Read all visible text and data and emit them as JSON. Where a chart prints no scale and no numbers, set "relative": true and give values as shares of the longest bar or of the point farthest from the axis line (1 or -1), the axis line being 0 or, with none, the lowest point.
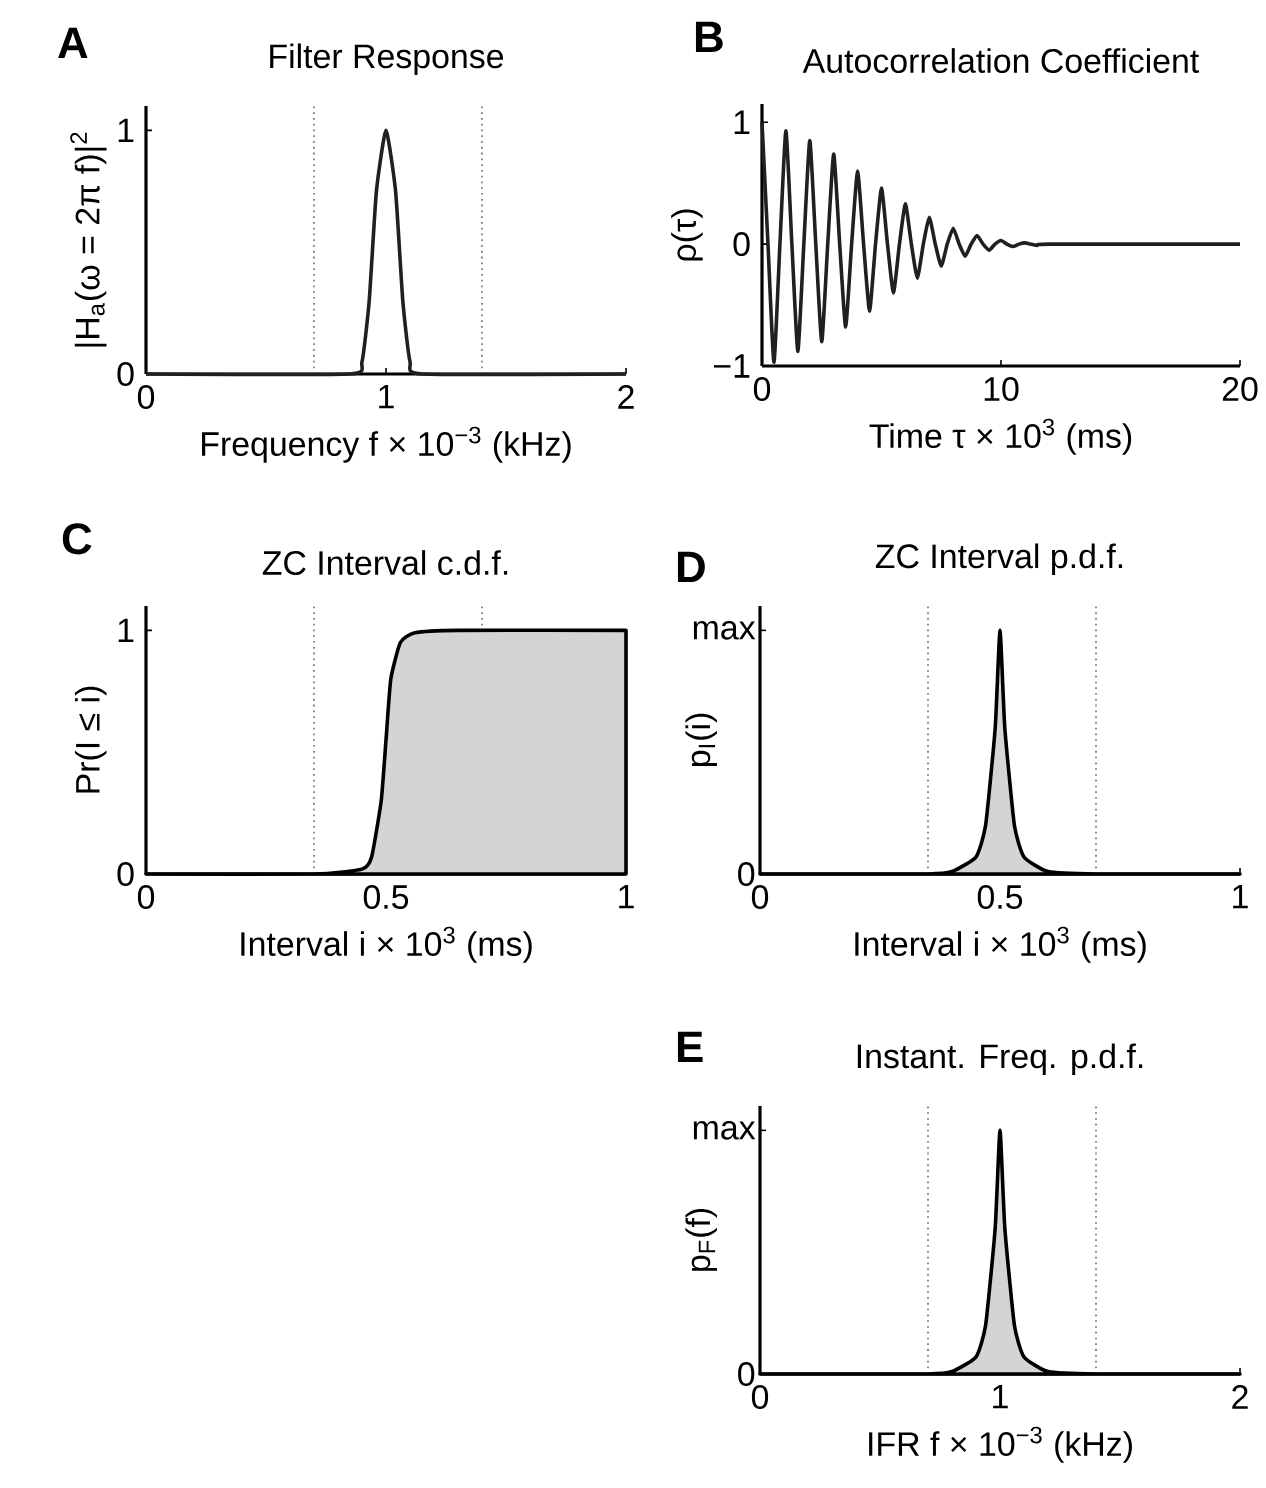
{
  "chart_data": [
    {
      "type": "line",
      "title": "Filter Response",
      "xlabel": "Frequency f × 10$^{−3}$ (kHz)",
      "ylabel": "|H$_{a}$(ω = 2π f)|$^{2}$",
      "annotations": [
        "A"
      ],
      "x": [
        0,
        0.85,
        0.9,
        0.93,
        0.96,
        1.0,
        1.04,
        1.07,
        1.1,
        1.15,
        2
      ],
      "series": [
        {
          "color": "#231f20",
          "values": [
            0,
            0,
            0.05,
            0.3,
            0.75,
            1.0,
            0.75,
            0.3,
            0.05,
            0,
            0
          ]
        }
      ],
      "xlim": [
        0,
        2
      ],
      "ylim": [
        0,
        1.1
      ],
      "xticks": [
        0,
        1,
        2
      ],
      "yticks": [
        0,
        1
      ],
      "ref_lines": [
        {
          "axis": "x",
          "value": 0.7,
          "color": "#808080",
          "line_style": "dotted"
        },
        {
          "axis": "x",
          "value": 1.4,
          "color": "#808080",
          "line_style": "dotted"
        }
      ]
    },
    {
      "type": "line",
      "title": "Autocorrelation Coefficient",
      "xlabel": "Time τ × 10$^{3}$ (ms)",
      "ylabel": "ρ(τ)",
      "annotations": [
        "B"
      ],
      "x": [
        0,
        0.25,
        0.5,
        0.75,
        1,
        1.25,
        1.5,
        1.75,
        2,
        2.25,
        2.5,
        2.75,
        3,
        3.25,
        3.5,
        3.75,
        4,
        4.25,
        4.5,
        4.75,
        5,
        5.25,
        5.5,
        5.75,
        6,
        6.25,
        6.5,
        6.75,
        7,
        7.25,
        7.5,
        7.75,
        8,
        8.25,
        8.5,
        8.75,
        9,
        9.25,
        9.5,
        9.75,
        10,
        10.25,
        10.5,
        10.75,
        11,
        11.5,
        12,
        20
      ],
      "series": [
        {
          "color": "#231f20",
          "values": [
            1,
            0,
            -0.97,
            0,
            0.93,
            0,
            -0.88,
            0,
            0.85,
            0,
            -0.8,
            0,
            0.74,
            0,
            -0.68,
            0,
            0.6,
            0,
            -0.55,
            0,
            0.46,
            0,
            -0.4,
            0,
            0.33,
            0,
            -0.28,
            0,
            0.22,
            0,
            -0.18,
            0,
            0.13,
            0,
            -0.1,
            0,
            0.07,
            0,
            -0.05,
            0,
            0.03,
            0,
            -0.02,
            0,
            0.01,
            -0.01,
            0,
            0
          ]
        }
      ],
      "xlim": [
        0,
        20
      ],
      "ylim": [
        -1,
        1.15
      ],
      "xticks": [
        0,
        10,
        20
      ],
      "yticks": [
        {
          "value": -1,
          "label": "−1"
        },
        0,
        1
      ]
    },
    {
      "type": "area",
      "title": "ZC Interval c.d.f.",
      "xlabel": "Interval i × 10$^{3}$ (ms)",
      "ylabel": "Pr(I ≤ i)",
      "annotations": [
        "C"
      ],
      "x": [
        0,
        0.35,
        0.45,
        0.47,
        0.49,
        0.5,
        0.51,
        0.53,
        0.56,
        0.65,
        1
      ],
      "series": [
        {
          "color": "#d4d4d4",
          "values": [
            0,
            0,
            0.02,
            0.07,
            0.3,
            0.55,
            0.8,
            0.95,
            0.99,
            1,
            1
          ]
        }
      ],
      "xlim": [
        0,
        1
      ],
      "ylim": [
        0,
        1.1
      ],
      "xticks": [
        0,
        0.5,
        1
      ],
      "yticks": [
        0,
        1
      ],
      "ref_lines": [
        {
          "axis": "x",
          "value": 0.35,
          "color": "#808080",
          "line_style": "dotted"
        },
        {
          "axis": "x",
          "value": 0.7,
          "color": "#808080",
          "line_style": "dotted"
        }
      ]
    },
    {
      "type": "area",
      "relative": true,
      "title": "ZC Interval p.d.f.",
      "xlabel": "Interval i × 10$^{3}$ (ms)",
      "ylabel": "p$_{I}$(i)",
      "annotations": [
        "D",
        "0",
        "max"
      ],
      "x": [
        0,
        0.35,
        0.4,
        0.45,
        0.47,
        0.49,
        0.5,
        0.51,
        0.53,
        0.55,
        0.6,
        0.7,
        1
      ],
      "series": [
        {
          "color": "#d4d4d4",
          "values": [
            0,
            0,
            0.01,
            0.07,
            0.2,
            0.6,
            1,
            0.6,
            0.2,
            0.07,
            0.01,
            0,
            0
          ]
        }
      ],
      "xlim": [
        0,
        1
      ],
      "xticks": [
        0,
        0.5,
        1
      ],
      "ref_lines": [
        {
          "axis": "x",
          "value": 0.35,
          "color": "#808080",
          "line_style": "dotted"
        },
        {
          "axis": "x",
          "value": 0.7,
          "color": "#808080",
          "line_style": "dotted"
        }
      ]
    },
    {
      "type": "area",
      "relative": true,
      "title": "Instant. Freq. p.d.f.",
      "xlabel": "IFR f × 10$^{−3}$ (kHz)",
      "ylabel": "p$_{F}$(f)",
      "annotations": [
        "E",
        "0",
        "max"
      ],
      "x": [
        0,
        0.7,
        0.8,
        0.9,
        0.94,
        0.98,
        1,
        1.02,
        1.06,
        1.1,
        1.2,
        1.4,
        2
      ],
      "series": [
        {
          "color": "#d4d4d4",
          "values": [
            0,
            0,
            0.01,
            0.07,
            0.2,
            0.6,
            1,
            0.6,
            0.2,
            0.07,
            0.01,
            0,
            0
          ]
        }
      ],
      "xlim": [
        0,
        2
      ],
      "xticks": [
        0,
        1,
        2
      ],
      "ref_lines": [
        {
          "axis": "x",
          "value": 0.7,
          "color": "#808080",
          "line_style": "dotted"
        },
        {
          "axis": "x",
          "value": 1.4,
          "color": "#808080",
          "line_style": "dotted"
        }
      ]
    }
  ]
}
